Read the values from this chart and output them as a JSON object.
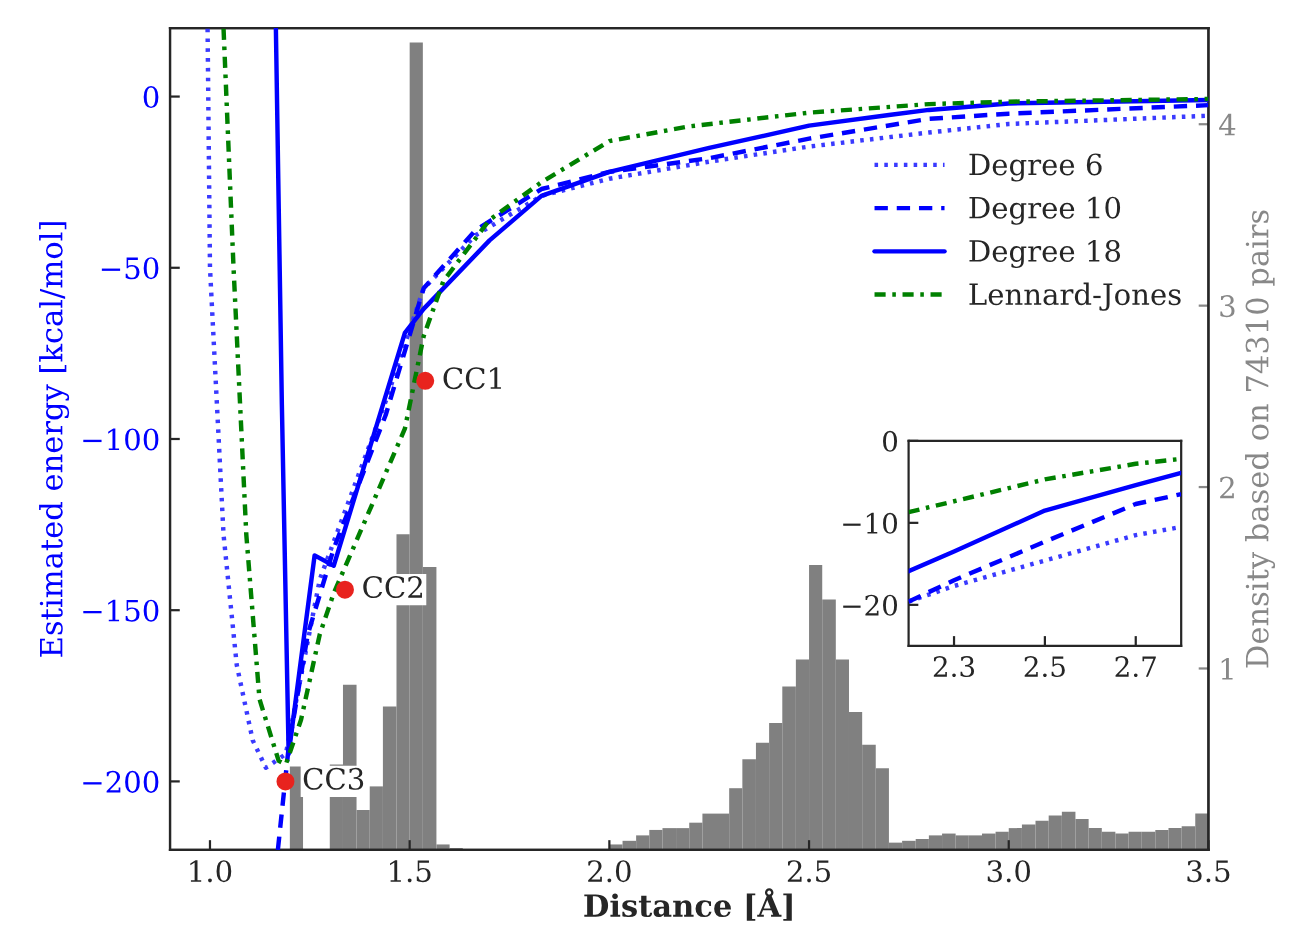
{
  "chart_data": [
    {
      "type": "line",
      "xlabel": "Distance [Å]",
      "ylabel": "Estimated energy [kcal/mol]",
      "y2label": "Density based on 74310 pairs",
      "xlim": [
        0.9,
        3.5
      ],
      "xticks": [
        {
          "value": 1.0,
          "label": "1.0"
        },
        {
          "value": 1.5,
          "label": "1.5"
        },
        {
          "value": 2.0,
          "label": "2.0"
        },
        {
          "value": 2.5,
          "label": "2.5"
        },
        {
          "value": 3.0,
          "label": "3.0"
        },
        {
          "value": 3.5,
          "label": "3.5"
        }
      ],
      "ylim": [
        -220,
        20
      ],
      "yticks": [
        {
          "value": -200,
          "label": "−200"
        },
        {
          "value": -150,
          "label": "−150"
        },
        {
          "value": -100,
          "label": "−100"
        },
        {
          "value": -50,
          "label": "−50"
        },
        0
      ],
      "y2lim": [
        0,
        4.53
      ],
      "y2ticks": [
        1,
        2,
        3,
        4
      ],
      "grid": false,
      "legend": "right",
      "marker": "none",
      "series": [
        {
          "name": "Degree 6",
          "color": "#3a3aff",
          "line_style": "dotted",
          "x": [
            0.994,
            1.0,
            1.034,
            1.067,
            1.107,
            1.14,
            1.19,
            1.275,
            1.44,
            1.535,
            1.665,
            1.83,
            2.0,
            2.25,
            2.5,
            2.8,
            3.0,
            3.5
          ],
          "values": [
            19.8,
            -50,
            -128,
            -166,
            -188,
            -196,
            -192,
            -141,
            -89,
            -56,
            -40.5,
            -29,
            -24,
            -19,
            -14.6,
            -10.5,
            -8,
            -5.6
          ]
        },
        {
          "name": "Degree 10",
          "color": "#0000ff",
          "line_style": "dashed",
          "x": [
            1.17,
            1.197,
            1.245,
            1.31,
            1.44,
            1.535,
            1.665,
            1.83,
            2.0,
            2.25,
            2.5,
            2.8,
            3.0,
            3.5
          ],
          "values": [
            -220,
            -190,
            -157,
            -132,
            -93,
            -56,
            -39,
            -27,
            -22,
            -18,
            -12.3,
            -6.5,
            -5,
            -2.5
          ]
        },
        {
          "name": "Degree 18",
          "color": "#0000ff",
          "line_style": "solid",
          "x": [
            1.165,
            1.18,
            1.197,
            1.262,
            1.31,
            1.488,
            1.535,
            1.7,
            1.83,
            2.0,
            2.25,
            2.5,
            2.7,
            2.8,
            3.0,
            3.5
          ],
          "values": [
            20,
            -90,
            -192,
            -134,
            -137,
            -69,
            -62,
            -42,
            -29,
            -22,
            -15,
            -8.5,
            -5.4,
            -3.9,
            -2,
            -1
          ]
        },
        {
          "name": "Lennard-Jones",
          "color": "#008000",
          "line_style": "dashdot",
          "x": [
            1.034,
            1.059,
            1.091,
            1.124,
            1.172,
            1.19,
            1.228,
            1.275,
            1.31,
            1.488,
            1.535,
            1.584,
            1.7,
            1.83,
            2.0,
            2.2,
            2.5,
            2.8,
            3.0,
            3.5
          ],
          "values": [
            19.8,
            -50,
            -128,
            -176,
            -194,
            -195,
            -182,
            -157,
            -145,
            -97,
            -70,
            -54,
            -36,
            -25,
            -13,
            -8.7,
            -4.7,
            -2.2,
            -1.5,
            -0.7
          ]
        },
        {
          "type": "scatter",
          "color": "#e8231e",
          "marker": "circle",
          "x": [
            1.539,
            1.338,
            1.189
          ],
          "values": [
            -83,
            -144,
            -200
          ]
        },
        {
          "type": "histogram",
          "axis": "y2",
          "color": "#808080",
          "bins": [
            1.2,
            1.233,
            1.267,
            1.3,
            1.333,
            1.367,
            1.4,
            1.433,
            1.467,
            1.5,
            1.533,
            1.567,
            1.6,
            1.633,
            1.667,
            1.7,
            1.733,
            1.767,
            1.8,
            1.833,
            1.867,
            1.9,
            1.933,
            1.967,
            2.0,
            2.033,
            2.067,
            2.1,
            2.133,
            2.167,
            2.2,
            2.233,
            2.267,
            2.3,
            2.333,
            2.367,
            2.4,
            2.433,
            2.467,
            2.5,
            2.533,
            2.567,
            2.6,
            2.633,
            2.667,
            2.7,
            2.733,
            2.767,
            2.8,
            2.833,
            2.867,
            2.9,
            2.933,
            2.967,
            3.0,
            3.033,
            3.067,
            3.1,
            3.133,
            3.167,
            3.2,
            3.233,
            3.267,
            3.3,
            3.333,
            3.367,
            3.4,
            3.433,
            3.467,
            3.5
          ],
          "values": [
            0.46,
            0,
            0,
            0.47,
            0.91,
            0.22,
            0.35,
            0.79,
            1.74,
            4.45,
            1.56,
            0.03,
            0.01,
            0,
            0,
            0,
            0,
            0,
            0,
            0,
            0,
            0,
            0,
            0,
            0.03,
            0.05,
            0.08,
            0.11,
            0.12,
            0.12,
            0.15,
            0.2,
            0.2,
            0.34,
            0.5,
            0.59,
            0.7,
            0.9,
            1.05,
            1.57,
            1.38,
            1.05,
            0.76,
            0.58,
            0.45,
            0.04,
            0.05,
            0.06,
            0.08,
            0.09,
            0.08,
            0.08,
            0.09,
            0.1,
            0.12,
            0.14,
            0.16,
            0.19,
            0.21,
            0.17,
            0.12,
            0.1,
            0.09,
            0.1,
            0.1,
            0.11,
            0.12,
            0.13,
            0.2
          ]
        }
      ],
      "annotations": [
        {
          "text": "CC1",
          "x": 1.539,
          "y": -83
        },
        {
          "text": "CC2",
          "x": 1.338,
          "y": -144
        },
        {
          "text": "CC3",
          "x": 1.189,
          "y": -200
        }
      ]
    },
    {
      "type": "line",
      "xlim": [
        2.2,
        2.8
      ],
      "xticks": [
        2.3,
        2.5,
        2.7
      ],
      "ylim": [
        -25,
        0
      ],
      "yticks": [
        {
          "value": -20,
          "label": "−20"
        },
        {
          "value": -10,
          "label": "−10"
        },
        0
      ],
      "grid": false,
      "marker": "none",
      "series": [
        {
          "color": "#3a3aff",
          "line_style": "dotted",
          "x": [
            2.2,
            2.3,
            2.5,
            2.7,
            2.8
          ],
          "values": [
            -19.6,
            -17.7,
            -14.6,
            -11.5,
            -10.5
          ]
        },
        {
          "color": "#0000ff",
          "line_style": "dashed",
          "x": [
            2.2,
            2.3,
            2.5,
            2.7,
            2.8
          ],
          "values": [
            -19.6,
            -17,
            -12.3,
            -7.7,
            -6.5
          ]
        },
        {
          "color": "#0000ff",
          "line_style": "solid",
          "x": [
            2.2,
            2.3,
            2.5,
            2.7,
            2.8
          ],
          "values": [
            -15.9,
            -13.5,
            -8.5,
            -5.4,
            -3.9
          ]
        },
        {
          "color": "#008000",
          "line_style": "dashdot",
          "x": [
            2.2,
            2.5,
            2.7,
            2.8
          ],
          "values": [
            -8.7,
            -4.7,
            -2.8,
            -2.2
          ]
        }
      ]
    }
  ]
}
